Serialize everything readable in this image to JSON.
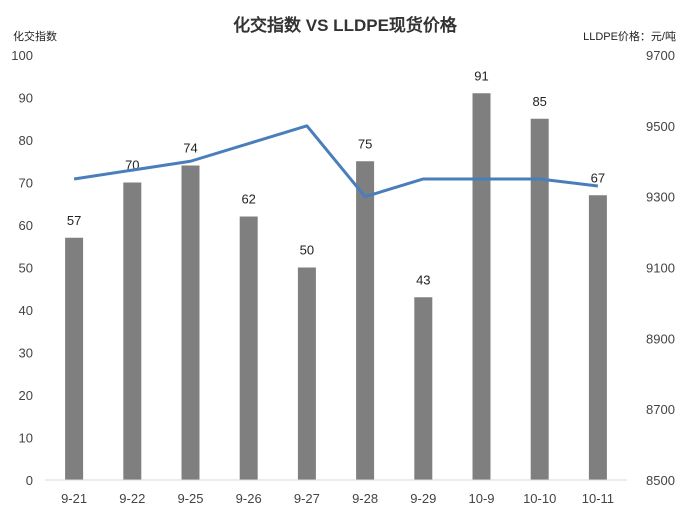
{
  "chart_data": {
    "type": "bar+line",
    "title": "化交指数 VS LLDPE现货价格",
    "left_axis_label": "化交指数",
    "right_axis_label": "LLDPE价格：元/吨",
    "categories": [
      "9-21",
      "9-22",
      "9-25",
      "9-26",
      "9-27",
      "9-28",
      "9-29",
      "10-9",
      "10-10",
      "10-11"
    ],
    "series": [
      {
        "kind": "bar",
        "axis": "left",
        "values": [
          57,
          70,
          74,
          62,
          50,
          75,
          43,
          91,
          85,
          67
        ],
        "color": "#7f7f7f"
      },
      {
        "kind": "line",
        "axis": "right",
        "values": [
          9350,
          9375,
          9400,
          9450,
          9500,
          9300,
          9350,
          9350,
          9350,
          9330
        ],
        "color": "#4a7ebb"
      }
    ],
    "left_ylim": [
      0,
      100
    ],
    "left_ticks": [
      0,
      10,
      20,
      30,
      40,
      50,
      60,
      70,
      80,
      90,
      100
    ],
    "right_ylim": [
      8500,
      9700
    ],
    "right_ticks": [
      8500,
      8700,
      8900,
      9100,
      9300,
      9500,
      9700
    ],
    "grid": false,
    "legend": "none"
  }
}
